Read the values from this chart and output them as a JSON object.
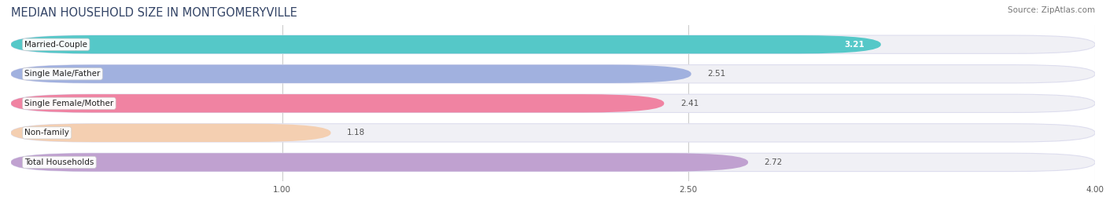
{
  "title": "MEDIAN HOUSEHOLD SIZE IN MONTGOMERYVILLE",
  "source": "Source: ZipAtlas.com",
  "categories": [
    "Married-Couple",
    "Single Male/Father",
    "Single Female/Mother",
    "Non-family",
    "Total Households"
  ],
  "values": [
    3.21,
    2.51,
    2.41,
    1.18,
    2.72
  ],
  "bar_colors": [
    "#44c4c4",
    "#99aadd",
    "#f07799",
    "#f5ccaa",
    "#bb99cc"
  ],
  "xlim_data": [
    0.0,
    4.0
  ],
  "x_min": 0.0,
  "x_max": 4.0,
  "xticks": [
    1.0,
    2.5,
    4.0
  ],
  "bar_height": 0.62,
  "bg_color": "#ffffff",
  "bar_bg_color": "#f0f0f5",
  "bar_bg_border": "#ddddee",
  "title_fontsize": 10.5,
  "label_fontsize": 7.5,
  "value_fontsize": 7.5,
  "source_fontsize": 7.5,
  "title_color": "#334466",
  "value_label_color_inside": "#ffffff",
  "value_label_color_outside": "#555555"
}
